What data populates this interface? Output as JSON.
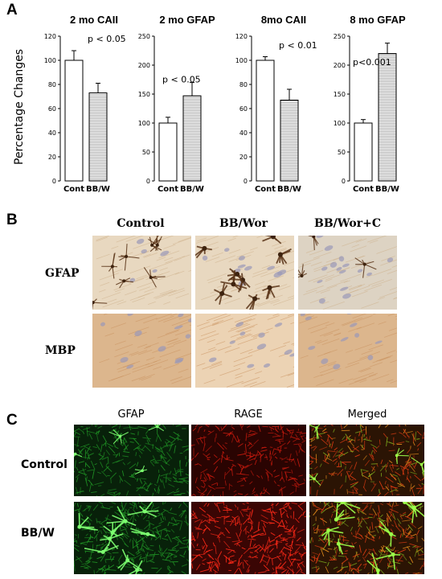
{
  "panel_a": {
    "letter": "A",
    "ylabel": "Percentage Changes",
    "charts": [
      {
        "title": "2 mo CAII",
        "annotation": "p < 0.05",
        "ticks": [
          "0",
          "20",
          "40",
          "60",
          "80",
          "100",
          "120"
        ],
        "ymax": 120
      },
      {
        "title": "2 mo GFAP",
        "annotation": "p < 0.05",
        "ticks": [
          "0",
          "50",
          "100",
          "150",
          "200",
          "250"
        ],
        "ymax": 250
      },
      {
        "title": "8mo CAII",
        "annotation": "p < 0.01",
        "ticks": [
          "0",
          "20",
          "40",
          "60",
          "80",
          "100",
          "120"
        ],
        "ymax": 120
      },
      {
        "title": "8 mo GFAP",
        "annotation": "p<0.001",
        "ticks": [
          "0",
          "50",
          "100",
          "150",
          "200",
          "250"
        ],
        "ymax": 250
      }
    ]
  },
  "chart_data": [
    {
      "type": "bar",
      "title": "2 mo CAII",
      "categories": [
        "Cont",
        "BB/W"
      ],
      "values": [
        100,
        73
      ],
      "errors": [
        8,
        8
      ],
      "ylim": [
        0,
        120
      ]
    },
    {
      "type": "bar",
      "title": "2 mo GFAP",
      "categories": [
        "Cont",
        "BB/W"
      ],
      "values": [
        100,
        147
      ],
      "errors": [
        10,
        23
      ],
      "ylim": [
        0,
        250
      ]
    },
    {
      "type": "bar",
      "title": "8mo CAII",
      "categories": [
        "Cont",
        "BB/W"
      ],
      "values": [
        100,
        67
      ],
      "errors": [
        3,
        9
      ],
      "ylim": [
        0,
        120
      ]
    },
    {
      "type": "bar",
      "title": "8 mo GFAP",
      "categories": [
        "Cont",
        "BB/W"
      ],
      "values": [
        100,
        220
      ],
      "errors": [
        6,
        18
      ],
      "ylim": [
        0,
        250
      ]
    }
  ],
  "panel_b": {
    "letter": "B",
    "columns": [
      "Control",
      "BB/Wor",
      "BB/Wor+C"
    ],
    "rows": [
      "GFAP",
      "MBP"
    ]
  },
  "panel_c": {
    "letter": "C",
    "columns": [
      "GFAP",
      "RAGE",
      "Merged"
    ],
    "rows": [
      "Control",
      "BB/W"
    ]
  },
  "colors": {
    "bar_fill_control": "#ffffff",
    "bar_fill_treated": "#e8e8e8",
    "ihc_bg": "#e6cfae",
    "fluor_green": "#2db52d",
    "fluor_red": "#d21c10"
  }
}
